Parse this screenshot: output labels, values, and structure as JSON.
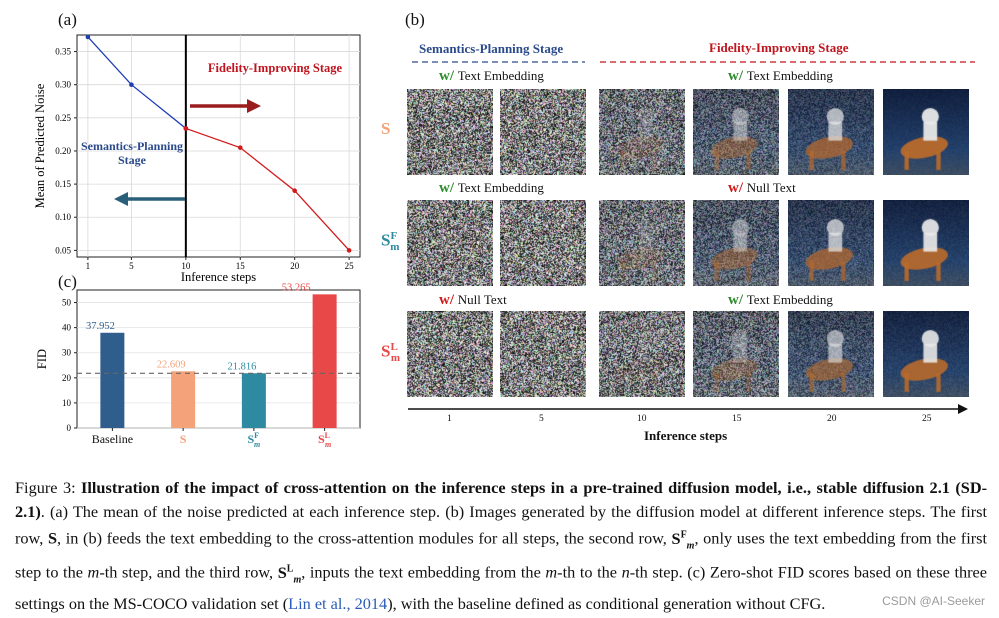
{
  "panel_a": {
    "letter": "(a)",
    "ylabel": "Mean of Predicted Noise",
    "xlabel": "Inference steps",
    "label_fidelity": "Fidelity-Improving Stage",
    "label_semantics_l1": "Semantics-Planning",
    "label_semantics_l2": "Stage",
    "colors": {
      "semantics": "#1f3fb5",
      "fidelity": "#d11a1a",
      "arrow_right": "#9b1c1c",
      "arrow_left": "#2a5f7a"
    }
  },
  "panel_c": {
    "letter": "(c)",
    "ylabel": "FID",
    "bar_labels": [
      "Baseline",
      "S",
      "S",
      "S"
    ],
    "bar_label_sups": [
      "",
      "",
      "F",
      "L"
    ],
    "bar_label_subs": [
      "",
      "",
      "m",
      "m"
    ],
    "value_labels": [
      "37.952",
      "22.609",
      "21.816",
      "53.265"
    ],
    "colors": [
      "#2f5d8c",
      "#f4a27a",
      "#2e8aa0",
      "#e84848"
    ]
  },
  "panel_b": {
    "letter": "(b)",
    "stage_semantics": "Semantics-Planning Stage",
    "stage_fidelity": "Fidelity-Improving Stage",
    "rows": [
      {
        "label": "S",
        "label_sup": "",
        "label_sub": "",
        "label_color": "#f4a27a",
        "left_w": "w/",
        "left_text": "Text Embedding",
        "left_w_color": "#2e8b2e",
        "right_w": "w/",
        "right_text": "Text Embedding",
        "right_w_color": "#2e8b2e"
      },
      {
        "label": "S",
        "label_sup": "F",
        "label_sub": "m",
        "label_color": "#2e8aa0",
        "left_w": "w/",
        "left_text": "Text Embedding",
        "left_w_color": "#2e8b2e",
        "right_w": "w/",
        "right_text": "Null Text",
        "right_w_color": "#d11a1a"
      },
      {
        "label": "S",
        "label_sup": "L",
        "label_sub": "m",
        "label_color": "#e84848",
        "left_w": "w/",
        "left_text": "Null Text",
        "left_w_color": "#d11a1a",
        "right_w": "w/",
        "right_text": "Text Embedding",
        "right_w_color": "#2e8b2e"
      }
    ],
    "steps": [
      "1",
      "5",
      "10",
      "15",
      "20",
      "25"
    ],
    "xlabel": "Inference steps"
  },
  "chart_data": [
    {
      "type": "line",
      "title": "",
      "xlabel": "Inference steps",
      "ylabel": "Mean of Predicted Noise",
      "xlim": [
        0,
        26
      ],
      "ylim": [
        0.04,
        0.375
      ],
      "xticks": [
        1,
        5,
        10,
        15,
        20,
        25
      ],
      "yticks": [
        0.05,
        0.1,
        0.15,
        0.2,
        0.25,
        0.3,
        0.35
      ],
      "grid": true,
      "vline_x": 10,
      "series": [
        {
          "x": [
            1,
            5,
            10
          ],
          "y": [
            0.372,
            0.3,
            0.234
          ]
        },
        {
          "x": [
            10,
            15,
            20,
            25
          ],
          "y": [
            0.234,
            0.205,
            0.14,
            0.05
          ]
        }
      ]
    },
    {
      "type": "bar",
      "title": "",
      "xlabel": "",
      "ylabel": "FID",
      "categories": [
        "Baseline",
        "S",
        "S^F_m",
        "S^L_m"
      ],
      "values": [
        37.952,
        22.609,
        21.816,
        53.265
      ],
      "ylim": [
        0,
        55
      ],
      "yticks": [
        0,
        10,
        20,
        30,
        40,
        50
      ],
      "reference_line": 21.8,
      "grid": true
    }
  ],
  "caption": {
    "figure_label": "Figure 3:",
    "bold_title": "Illustration of the impact of cross-attention on the inference steps in a pre-trained diffusion model, i.e., stable diffusion 2.1 (SD-2.1)",
    "part1": ". (a) The mean of the noise predicted at each inference step. (b) Images generated by the diffusion model at different inference steps. The first row, ",
    "S": "S",
    "part2": ", in (b) feeds the text embedding to the cross-attention modules for all steps, the second row, ",
    "part3": ", only uses the text embedding from the first step to the ",
    "m": "m",
    "part4": "-th step, and the third row, ",
    "part5": ", inputs the text embedding from the ",
    "part6": "-th to the ",
    "n": "n",
    "part7": "-th step. (c) Zero-shot FID scores based on these three settings on the MS-COCO validation set (",
    "cite": "Lin et al., 2014",
    "part8": "), with the baseline defined as conditional generation without CFG."
  },
  "watermark": "CSDN @AI-Seeker"
}
